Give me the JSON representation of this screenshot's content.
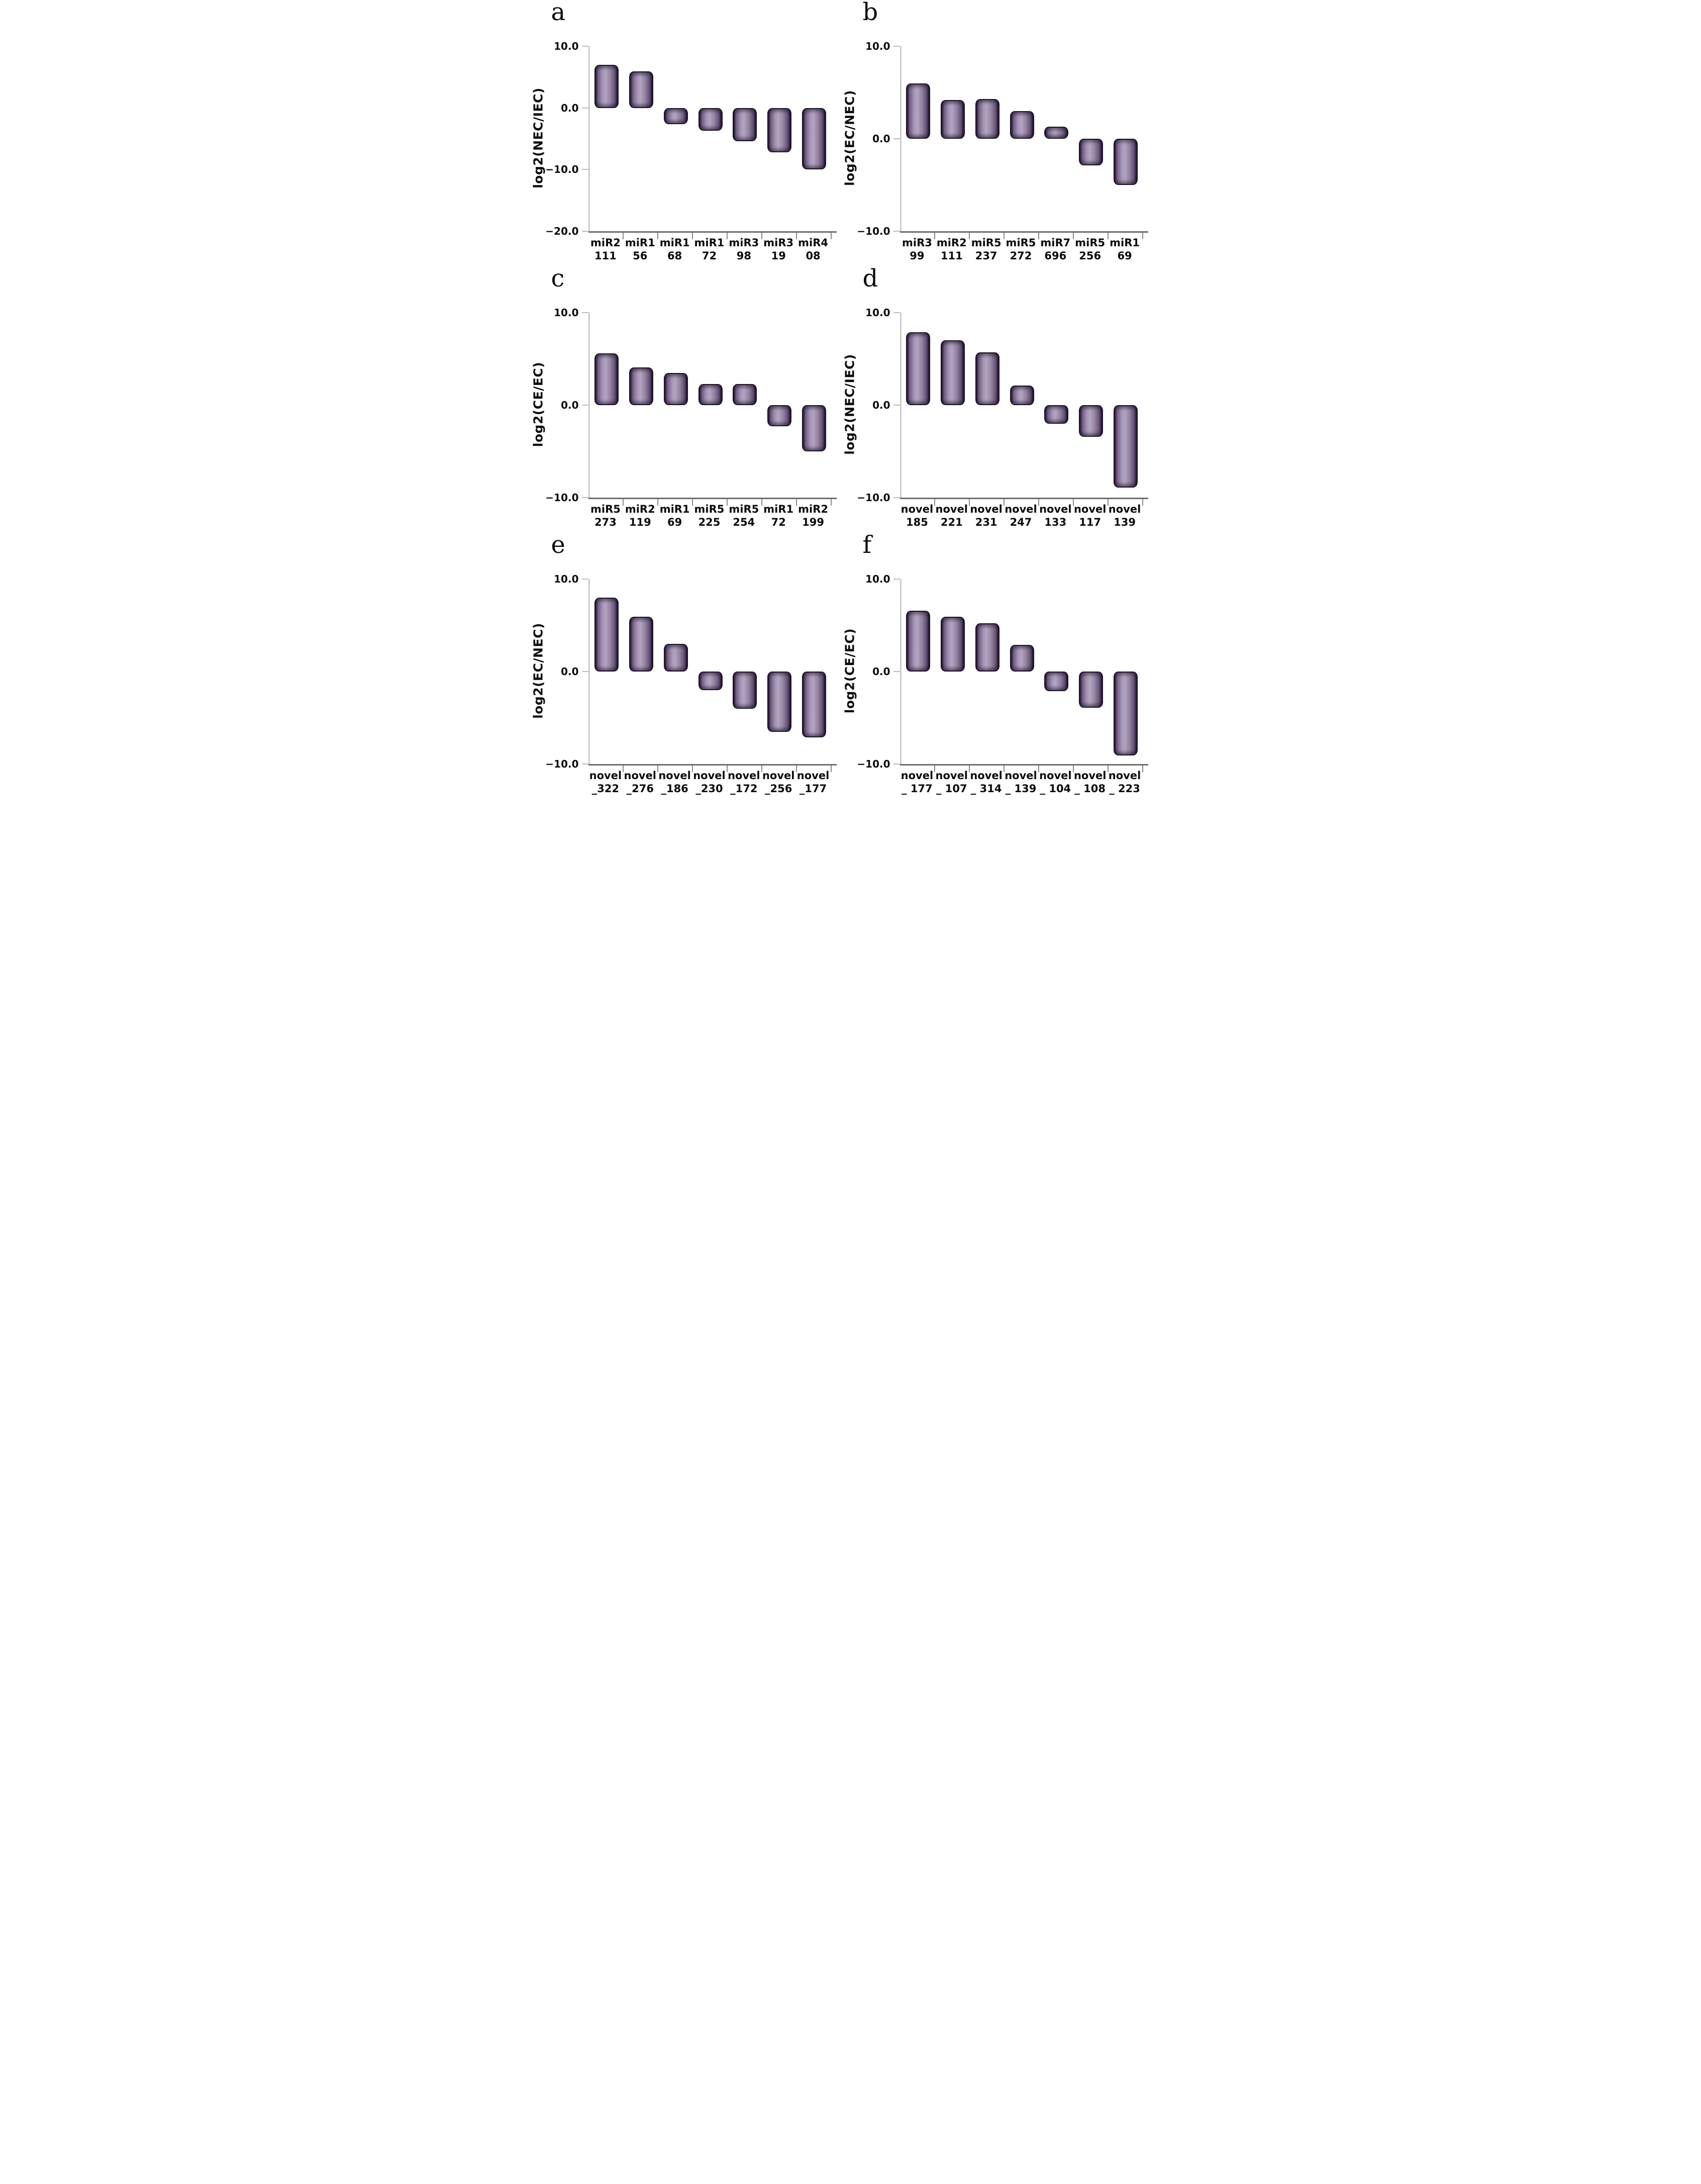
{
  "figure": {
    "background": "#ffffff",
    "style": {
      "bar_fill_mid": "#a495b5",
      "bar_fill_edge": "#3a2b48",
      "bar_outline": "#1c1326",
      "yaxis_color": "#cccccc",
      "baseline_color": "#6e6e6e",
      "text_color": "#0b0b0b"
    }
  },
  "chart_data": [
    {
      "panel": "a",
      "type": "bar",
      "ylabel": "log2(NEC/IEC)",
      "ylim": [
        -20,
        10
      ],
      "grid": false,
      "legend": "none",
      "yticks": [
        {
          "v": 10,
          "label": "10.0"
        },
        {
          "v": 0,
          "label": "0.0"
        },
        {
          "v": -10,
          "label": "−10.0"
        },
        {
          "v": -20,
          "label": "−20.0"
        }
      ],
      "categories": [
        [
          "miR2",
          "111"
        ],
        [
          "miR1",
          "56"
        ],
        [
          "miR1",
          "68"
        ],
        [
          "miR1",
          "72"
        ],
        [
          "miR3",
          "98"
        ],
        [
          "miR3",
          "19"
        ],
        [
          "miR4",
          "08"
        ]
      ],
      "values": [
        7.0,
        5.9,
        -2.6,
        -3.7,
        -5.4,
        -7.2,
        -10.0
      ]
    },
    {
      "panel": "b",
      "type": "bar",
      "ylabel": "log2(EC/NEC)",
      "ylim": [
        -10,
        10
      ],
      "grid": false,
      "legend": "none",
      "yticks": [
        {
          "v": 10,
          "label": "10.0"
        },
        {
          "v": 0,
          "label": "0.0"
        },
        {
          "v": -10,
          "label": "−10.0"
        }
      ],
      "categories": [
        [
          "miR3",
          "99"
        ],
        [
          "miR2",
          "111"
        ],
        [
          "miR5",
          "237"
        ],
        [
          "miR5",
          "272"
        ],
        [
          "miR7",
          "696"
        ],
        [
          "miR5",
          "256"
        ],
        [
          "miR1",
          "69"
        ]
      ],
      "values": [
        6.0,
        4.2,
        4.3,
        3.0,
        1.3,
        -2.9,
        -5.0
      ]
    },
    {
      "panel": "c",
      "type": "bar",
      "ylabel": "log2(CE/EC)",
      "ylim": [
        -10,
        10
      ],
      "grid": false,
      "legend": "none",
      "yticks": [
        {
          "v": 10,
          "label": "10.0"
        },
        {
          "v": 0,
          "label": "0.0"
        },
        {
          "v": -10,
          "label": "−10.0"
        }
      ],
      "categories": [
        [
          "miR5",
          "273"
        ],
        [
          "miR2",
          "119"
        ],
        [
          "miR1",
          "69"
        ],
        [
          "miR5",
          "225"
        ],
        [
          "miR5",
          "254"
        ],
        [
          "miR1",
          "72"
        ],
        [
          "miR2",
          "199"
        ]
      ],
      "values": [
        5.6,
        4.1,
        3.5,
        2.3,
        2.3,
        -2.3,
        -5.0
      ]
    },
    {
      "panel": "d",
      "type": "bar",
      "ylabel": "log2(NEC/IEC)",
      "ylim": [
        -10,
        10
      ],
      "grid": false,
      "legend": "none",
      "yticks": [
        {
          "v": 10,
          "label": "10.0"
        },
        {
          "v": 0,
          "label": "0.0"
        },
        {
          "v": -10,
          "label": "−10.0"
        }
      ],
      "categories": [
        [
          "novel",
          "185"
        ],
        [
          "novel",
          "221"
        ],
        [
          "novel",
          "231"
        ],
        [
          "novel",
          "247"
        ],
        [
          "novel",
          "133"
        ],
        [
          "novel",
          "117"
        ],
        [
          "novel",
          "139"
        ]
      ],
      "values": [
        7.9,
        7.0,
        5.7,
        2.1,
        -2.0,
        -3.4,
        -8.9
      ]
    },
    {
      "panel": "e",
      "type": "bar",
      "ylabel": "log2(EC/NEC)",
      "ylim": [
        -10,
        10
      ],
      "grid": false,
      "legend": "none",
      "yticks": [
        {
          "v": 10,
          "label": "10.0"
        },
        {
          "v": 0,
          "label": "0.0"
        },
        {
          "v": -10,
          "label": "−10.0"
        }
      ],
      "categories": [
        [
          "novel",
          "_322"
        ],
        [
          "novel",
          "_276"
        ],
        [
          "novel",
          "_186"
        ],
        [
          "novel",
          "_230"
        ],
        [
          "novel",
          "_172"
        ],
        [
          "novel",
          "_256"
        ],
        [
          "novel",
          "_177"
        ]
      ],
      "values": [
        8.0,
        5.9,
        3.0,
        -2.0,
        -4.0,
        -6.5,
        -7.1
      ]
    },
    {
      "panel": "f",
      "type": "bar",
      "ylabel": "log2(CE/EC)",
      "ylim": [
        -10,
        10
      ],
      "grid": false,
      "legend": "none",
      "yticks": [
        {
          "v": 10,
          "label": "10.0"
        },
        {
          "v": 0,
          "label": "0.0"
        },
        {
          "v": -10,
          "label": "−10.0"
        }
      ],
      "categories": [
        [
          "novel",
          "_ 177"
        ],
        [
          "novel",
          "_ 107"
        ],
        [
          "novel",
          "_ 314"
        ],
        [
          "novel",
          "_ 139"
        ],
        [
          "novel",
          "_ 104"
        ],
        [
          "novel",
          "_ 108"
        ],
        [
          "novel",
          "_ 223"
        ]
      ],
      "values": [
        6.6,
        5.9,
        5.2,
        2.9,
        -2.1,
        -3.9,
        -9.1
      ]
    }
  ]
}
